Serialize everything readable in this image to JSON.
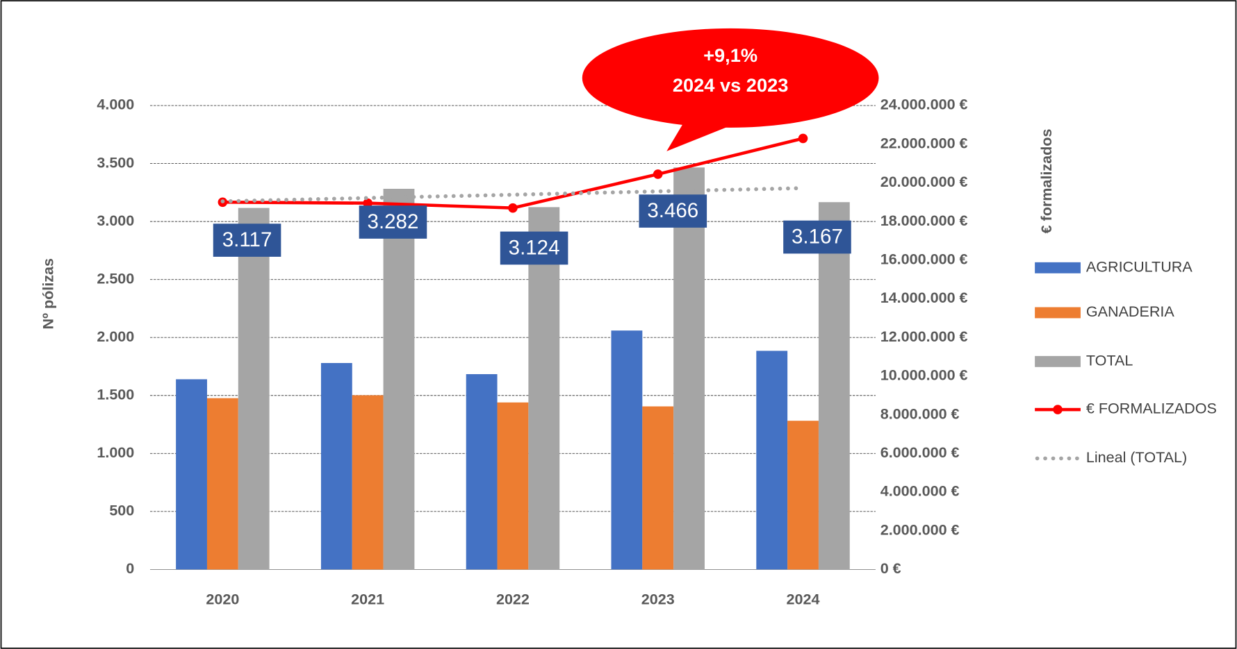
{
  "chart_data": {
    "type": "bar",
    "categories": [
      "2020",
      "2021",
      "2022",
      "2023",
      "2024"
    ],
    "series": [
      {
        "name": "AGRICULTURA",
        "color": "#4472C4",
        "values": [
          1640,
          1780,
          1684,
          2060,
          1885
        ]
      },
      {
        "name": "GANADERIA",
        "color": "#ED7D31",
        "values": [
          1477,
          1502,
          1440,
          1406,
          1282
        ]
      },
      {
        "name": "TOTAL",
        "color": "#A5A5A5",
        "values": [
          3117,
          3282,
          3124,
          3466,
          3167
        ],
        "value_labels": [
          "3.117",
          "3.282",
          "3.124",
          "3.466",
          "3.167"
        ]
      },
      {
        "name": "€ FORMALIZADOS",
        "color": "#FF0000",
        "type": "line",
        "axis": "y2",
        "values": [
          19000000,
          18950000,
          18700000,
          20450000,
          22300000
        ]
      },
      {
        "name": "Lineal (TOTAL)",
        "color": "#A5A5A5",
        "type": "trendline",
        "values": [
          3174,
          3203,
          3231,
          3260,
          3288
        ]
      }
    ],
    "ylabel": "Nº pólizas",
    "y2label": "€ formalizados",
    "ylim": [
      0,
      4000
    ],
    "yticks": [
      0,
      500,
      {
        "value": 1000,
        "label": "1.000"
      },
      {
        "value": 1500,
        "label": "1.500"
      },
      {
        "value": 2000,
        "label": "2.000"
      },
      {
        "value": 2500,
        "label": "2.500"
      },
      {
        "value": 3000,
        "label": "3.000"
      },
      {
        "value": 3500,
        "label": "3.500"
      },
      {
        "value": 4000,
        "label": "4.000"
      }
    ],
    "y2lim": [
      0,
      24000000
    ],
    "y2ticks": [
      {
        "value": 0,
        "label": "0 €"
      },
      {
        "value": 2000000,
        "label": "2.000.000 €"
      },
      {
        "value": 4000000,
        "label": "4.000.000 €"
      },
      {
        "value": 6000000,
        "label": "6.000.000 €"
      },
      {
        "value": 8000000,
        "label": "8.000.000 €"
      },
      {
        "value": 10000000,
        "label": "10.000.000 €"
      },
      {
        "value": 12000000,
        "label": "12.000.000 €"
      },
      {
        "value": 14000000,
        "label": "14.000.000 €"
      },
      {
        "value": 16000000,
        "label": "16.000.000 €"
      },
      {
        "value": 18000000,
        "label": "18.000.000 €"
      },
      {
        "value": 20000000,
        "label": "20.000.000 €"
      },
      {
        "value": 22000000,
        "label": "22.000.000 €"
      },
      {
        "value": 24000000,
        "label": "24.000.000 €"
      }
    ],
    "annotation": [
      "+9,1%",
      "2024 vs 2023"
    ],
    "grid": true,
    "legend": "right"
  }
}
